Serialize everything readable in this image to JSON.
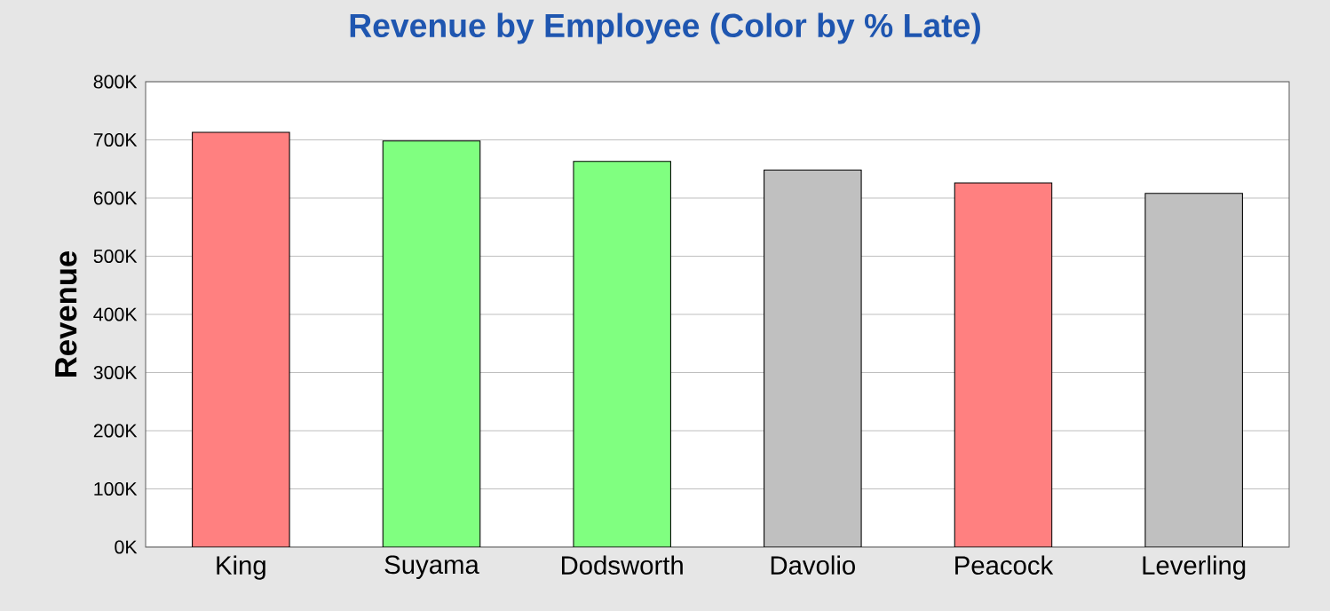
{
  "chart_data": {
    "type": "bar",
    "title": "Revenue by Employee (Color by % Late)",
    "ylabel": "Revenue",
    "categories": [
      "King",
      "Suyama",
      "Dodsworth",
      "Davolio",
      "Peacock",
      "Leverling"
    ],
    "values": [
      713000,
      698000,
      663000,
      648000,
      626000,
      608000
    ],
    "colors": [
      "#ff8080",
      "#80ff80",
      "#80ff80",
      "#c0c0c0",
      "#ff8080",
      "#c0c0c0"
    ],
    "ylim": [
      0,
      800000
    ],
    "yticks": [
      {
        "value": 0,
        "label": "0K"
      },
      {
        "value": 100000,
        "label": "100K"
      },
      {
        "value": 200000,
        "label": "200K"
      },
      {
        "value": 300000,
        "label": "300K"
      },
      {
        "value": 400000,
        "label": "400K"
      },
      {
        "value": 500000,
        "label": "500K"
      },
      {
        "value": 600000,
        "label": "600K"
      },
      {
        "value": 700000,
        "label": "700K"
      },
      {
        "value": 800000,
        "label": "800K"
      }
    ],
    "grid": "y"
  }
}
